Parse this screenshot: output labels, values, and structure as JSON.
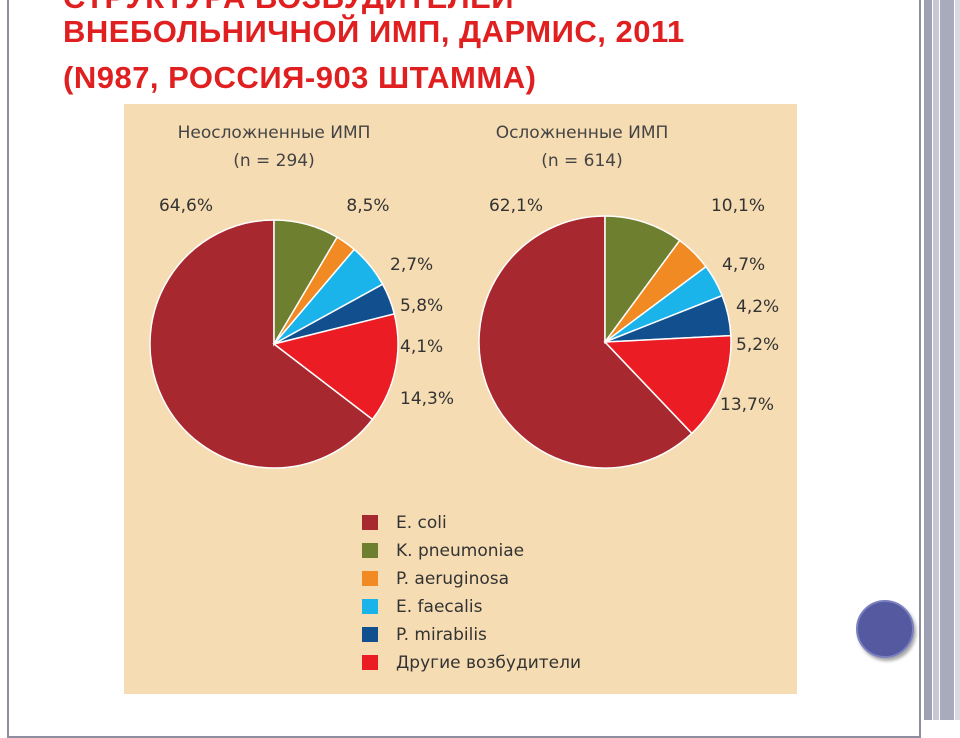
{
  "title": {
    "line0": "СТРУКТУРА ВОЗБУДИТЕЛЕЙ",
    "line1": "ВНЕБОЛЬНИЧНОЙ ИМП, ДАРМИС, 2011",
    "line2": "(N987, РОССИЯ-903 ШТАММА)"
  },
  "chart_data": {
    "type": "pie",
    "categories": [
      "E. coli",
      "K. pneumoniae",
      "P. aeruginosa",
      "E. faecalis",
      "P. mirabilis",
      "Другие возбудители"
    ],
    "colors": [
      "#a8282f",
      "#6e7f2f",
      "#f28a23",
      "#1ab4ea",
      "#124f8f",
      "#ec1c24"
    ],
    "legend_placement": "bottom",
    "charts": [
      {
        "title": "Неосложненные ИМП",
        "subtitle": "(n = 294)",
        "values": [
          64.6,
          8.5,
          2.7,
          5.8,
          4.1,
          14.3
        ],
        "labels": [
          "64,6%",
          "8,5%",
          "2,7%",
          "5,8%",
          "4,1%",
          "14,3%"
        ]
      },
      {
        "title": "Осложненные ИМП",
        "subtitle": "(n = 614)",
        "values": [
          62.1,
          10.1,
          4.7,
          4.2,
          5.2,
          13.7
        ],
        "labels": [
          "62,1%",
          "10,1%",
          "4,7%",
          "4,2%",
          "5,2%",
          "13,7%"
        ]
      }
    ]
  }
}
